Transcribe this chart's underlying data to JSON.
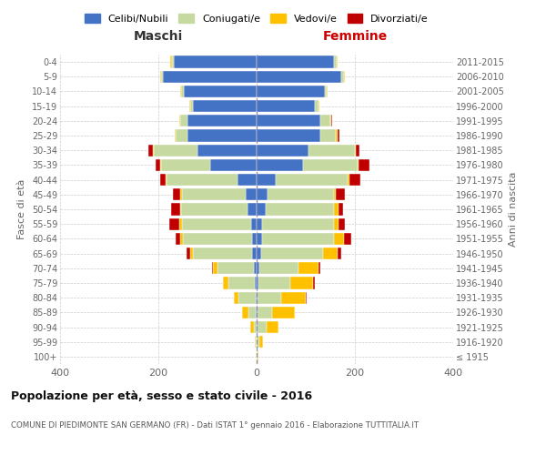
{
  "age_groups": [
    "100+",
    "95-99",
    "90-94",
    "85-89",
    "80-84",
    "75-79",
    "70-74",
    "65-69",
    "60-64",
    "55-59",
    "50-54",
    "45-49",
    "40-44",
    "35-39",
    "30-34",
    "25-29",
    "20-24",
    "15-19",
    "10-14",
    "5-9",
    "0-4"
  ],
  "birth_years": [
    "≤ 1915",
    "1916-1920",
    "1921-1925",
    "1926-1930",
    "1931-1935",
    "1936-1940",
    "1941-1945",
    "1946-1950",
    "1951-1955",
    "1956-1960",
    "1961-1965",
    "1966-1970",
    "1971-1975",
    "1976-1980",
    "1981-1985",
    "1986-1990",
    "1991-1995",
    "1996-2000",
    "2001-2005",
    "2006-2010",
    "2011-2015"
  ],
  "males": {
    "celibi": [
      0,
      0,
      0,
      2,
      2,
      3,
      5,
      10,
      10,
      12,
      18,
      22,
      38,
      95,
      120,
      140,
      140,
      130,
      148,
      190,
      168
    ],
    "coniugati": [
      0,
      2,
      5,
      15,
      35,
      55,
      75,
      120,
      140,
      140,
      135,
      130,
      145,
      100,
      90,
      25,
      15,
      5,
      5,
      5,
      5
    ],
    "vedovi": [
      0,
      2,
      8,
      12,
      10,
      10,
      8,
      5,
      5,
      5,
      3,
      3,
      2,
      2,
      2,
      2,
      2,
      2,
      2,
      2,
      2
    ],
    "divorziati": [
      0,
      0,
      0,
      0,
      0,
      0,
      2,
      8,
      10,
      20,
      18,
      15,
      12,
      8,
      8,
      0,
      0,
      0,
      0,
      0,
      0
    ]
  },
  "females": {
    "nubili": [
      0,
      0,
      2,
      2,
      2,
      4,
      5,
      10,
      12,
      12,
      18,
      22,
      38,
      95,
      105,
      130,
      130,
      118,
      138,
      172,
      158
    ],
    "coniugate": [
      2,
      5,
      18,
      30,
      48,
      65,
      80,
      125,
      145,
      145,
      140,
      135,
      148,
      110,
      95,
      32,
      20,
      8,
      5,
      5,
      5
    ],
    "vedove": [
      2,
      8,
      25,
      45,
      50,
      45,
      40,
      30,
      20,
      10,
      8,
      5,
      3,
      2,
      2,
      2,
      2,
      2,
      2,
      2,
      2
    ],
    "divorziate": [
      0,
      0,
      0,
      0,
      2,
      5,
      5,
      8,
      15,
      12,
      10,
      18,
      22,
      22,
      8,
      5,
      2,
      0,
      0,
      0,
      0
    ]
  },
  "colors": {
    "celibi": "#4472c4",
    "coniugati": "#c5d9a0",
    "vedovi": "#ffc000",
    "divorziati": "#c00000"
  },
  "xlim": 400,
  "title": "Popolazione per età, sesso e stato civile - 2016",
  "subtitle": "COMUNE DI PIEDIMONTE SAN GERMANO (FR) - Dati ISTAT 1° gennaio 2016 - Elaborazione TUTTITALIA.IT",
  "xlabel_left": "Maschi",
  "xlabel_right": "Femmine",
  "ylabel_left": "Fasce di età",
  "ylabel_right": "Anni di nascita",
  "legend_labels": [
    "Celibi/Nubili",
    "Coniugati/e",
    "Vedovi/e",
    "Divorziati/e"
  ],
  "bg_color": "#ffffff",
  "grid_color": "#cccccc"
}
